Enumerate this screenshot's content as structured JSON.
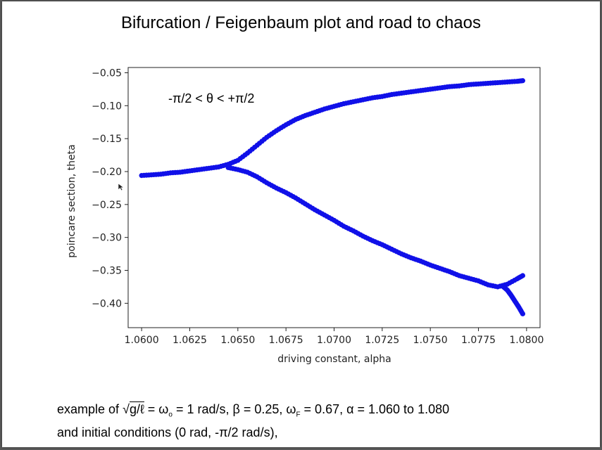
{
  "slide": {
    "title": "Bifurcation / Feigenbaum plot and road to chaos",
    "annotation": "-π/2 <  θ < +π/2",
    "caption": {
      "line1_prefix": "example of ",
      "sqrt_expr": "g/ℓ",
      "line1_a": " = ω",
      "omega_sub": "o",
      "line1_b": " = 1 rad/s, β = 0.25,    ω",
      "omegaF_sub": "F",
      "line1_c": " =  0.67,   α = 1.060 to 1.080",
      "line2": "and initial conditions (0 rad, -π/2 rad/s),"
    }
  },
  "chart_data": {
    "type": "scatter",
    "xlabel": "driving constant, alpha",
    "ylabel": "poincare section, theta",
    "xlim": [
      1.0593,
      1.0807
    ],
    "ylim": [
      -0.437,
      -0.042
    ],
    "xticks": [
      1.06,
      1.0625,
      1.065,
      1.0675,
      1.07,
      1.0725,
      1.075,
      1.0775,
      1.08
    ],
    "xtick_labels": [
      "1.0600",
      "1.0625",
      "1.0650",
      "1.0675",
      "1.0700",
      "1.0725",
      "1.0750",
      "1.0775",
      "1.0800"
    ],
    "yticks": [
      -0.05,
      -0.1,
      -0.15,
      -0.2,
      -0.25,
      -0.3,
      -0.35,
      -0.4
    ],
    "ytick_labels": [
      "−0.05",
      "−0.10",
      "−0.15",
      "−0.20",
      "−0.25",
      "−0.30",
      "−0.35",
      "−0.40"
    ],
    "grid": false,
    "marker_color": "#1010e8",
    "series": [
      {
        "x": [
          1.06,
          1.0605,
          1.061,
          1.0615,
          1.062,
          1.0625,
          1.063,
          1.0635,
          1.064,
          1.0645,
          1.065,
          1.0655,
          1.066,
          1.0665,
          1.067,
          1.0675,
          1.068,
          1.0685,
          1.069,
          1.0695,
          1.07,
          1.0705,
          1.071,
          1.0715,
          1.072,
          1.0725,
          1.073,
          1.0735,
          1.074,
          1.0745,
          1.075,
          1.0755,
          1.076,
          1.0765,
          1.077,
          1.0775,
          1.078,
          1.0785,
          1.079,
          1.0795,
          1.0798
        ],
        "y": [
          -0.206,
          -0.205,
          -0.204,
          -0.202,
          -0.201,
          -0.199,
          -0.197,
          -0.195,
          -0.193,
          -0.189,
          -0.183,
          -0.172,
          -0.16,
          -0.148,
          -0.138,
          -0.129,
          -0.121,
          -0.115,
          -0.11,
          -0.105,
          -0.101,
          -0.097,
          -0.094,
          -0.091,
          -0.088,
          -0.086,
          -0.083,
          -0.081,
          -0.079,
          -0.077,
          -0.075,
          -0.073,
          -0.071,
          -0.07,
          -0.068,
          -0.067,
          -0.066,
          -0.065,
          -0.064,
          -0.063,
          -0.062
        ]
      },
      {
        "x": [
          1.0645,
          1.065,
          1.0655,
          1.066,
          1.0665,
          1.067,
          1.0675,
          1.068,
          1.0685,
          1.069,
          1.0695,
          1.07,
          1.0705,
          1.071,
          1.0715,
          1.072,
          1.0725,
          1.073,
          1.0735,
          1.074,
          1.0745,
          1.075,
          1.0755,
          1.076,
          1.0765,
          1.077,
          1.0775,
          1.078,
          1.0785,
          1.079,
          1.0795,
          1.0798
        ],
        "y": [
          -0.194,
          -0.197,
          -0.201,
          -0.208,
          -0.217,
          -0.225,
          -0.232,
          -0.24,
          -0.249,
          -0.258,
          -0.266,
          -0.274,
          -0.283,
          -0.29,
          -0.298,
          -0.305,
          -0.311,
          -0.318,
          -0.325,
          -0.331,
          -0.336,
          -0.342,
          -0.347,
          -0.352,
          -0.358,
          -0.362,
          -0.366,
          -0.372,
          -0.375,
          -0.371,
          -0.363,
          -0.358
        ]
      },
      {
        "x": [
          1.0788,
          1.079,
          1.0792,
          1.0794,
          1.0796,
          1.0798
        ],
        "y": [
          -0.375,
          -0.38,
          -0.388,
          -0.397,
          -0.406,
          -0.416
        ]
      }
    ]
  }
}
